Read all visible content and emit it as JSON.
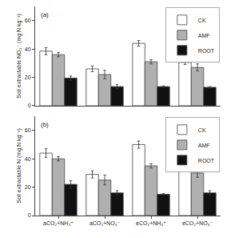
{
  "chart_data": [
    {
      "type": "bar",
      "ylabel": "Soil extractable NO₃⁻ (mg N kg⁻¹)",
      "annotations": [
        "(a)"
      ],
      "categories": [
        null,
        null,
        null,
        null
      ],
      "series": [
        {
          "name": "CK",
          "color": "#ffffff",
          "values": [
            38.5,
            26.0,
            44.0,
            30.5
          ],
          "errors": [
            2.5,
            2.0,
            2.0,
            1.5
          ]
        },
        {
          "name": "AMF",
          "color": "#b0b0b0",
          "values": [
            36.0,
            22.0,
            31.0,
            27.0
          ],
          "errors": [
            1.5,
            3.0,
            1.5,
            2.5
          ]
        },
        {
          "name": "ROOT",
          "color": "#111111",
          "values": [
            19.5,
            13.5,
            13.5,
            13.0
          ],
          "errors": [
            1.5,
            1.5,
            0.5,
            0.5
          ]
        }
      ],
      "ylim": [
        0,
        70
      ],
      "yticks": [
        0,
        20,
        40,
        60
      ],
      "legend": "upper right",
      "grid": false,
      "tick_labels": "y"
    },
    {
      "type": "bar",
      "ylabel": "Soil extractable N (mg N kg⁻¹)",
      "annotations": [
        "(b)"
      ],
      "categories": [
        "aCO₂+NH₄⁺",
        "aCO₂+NO₃⁻",
        "eCO₂+NH₄⁺",
        "eCO₂+NO₃⁻"
      ],
      "series": [
        {
          "name": "CK",
          "color": "#ffffff",
          "values": [
            44.0,
            29.0,
            50.0,
            34.0
          ],
          "errors": [
            3.0,
            2.5,
            2.5,
            2.5
          ]
        },
        {
          "name": "AMF",
          "color": "#b0b0b0",
          "values": [
            40.0,
            25.0,
            35.0,
            30.0
          ],
          "errors": [
            1.5,
            3.5,
            1.5,
            3.0
          ]
        },
        {
          "name": "ROOT",
          "color": "#111111",
          "values": [
            22.0,
            16.0,
            15.0,
            16.0
          ],
          "errors": [
            2.5,
            1.5,
            0.5,
            1.5
          ]
        }
      ],
      "ylim": [
        0,
        70
      ],
      "yticks": [
        0,
        20,
        40,
        60
      ],
      "legend": "upper right",
      "grid": false
    }
  ]
}
